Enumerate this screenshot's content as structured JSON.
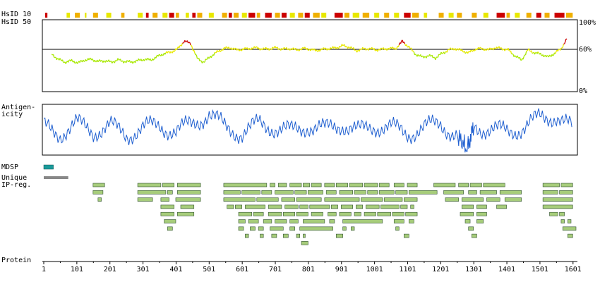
{
  "labels": {
    "hsid10": "HsID 10",
    "hsid50": "HsID 50",
    "pct100": "100%",
    "pct60": "60%",
    "pct0": "0%",
    "antigenicity": "Antigen-\nicity",
    "mdsp": "MDSP",
    "unique": "Unique\nIP-reg.",
    "protein": "Protein"
  },
  "colors": {
    "identity_high": "#cc0000",
    "identity_mid": "#e8e800",
    "identity_low": "#a8e800",
    "antigenicity_line": "#1f5fd0",
    "mdsp_bar": "#1a9a9a",
    "unique_bar": "#888888",
    "peptide_fill": "#a6cc7a",
    "peptide_stroke": "#2f4f2f"
  },
  "chart_data": {
    "type": "diagram",
    "x_axis": {
      "label": "Protein",
      "min": 1,
      "max": 1610,
      "ticks": [
        1,
        101,
        201,
        301,
        401,
        501,
        601,
        701,
        801,
        901,
        1001,
        1101,
        1201,
        1301,
        1401,
        1501,
        1601
      ]
    },
    "identity_y_ticks": [
      "100%",
      "60%",
      "0%"
    ],
    "identity_threshold_pct": 60,
    "identity_profile": {
      "x": [
        25,
        45,
        65,
        85,
        105,
        125,
        145,
        165,
        185,
        205,
        225,
        245,
        265,
        285,
        305,
        325,
        345,
        365,
        385,
        405,
        425,
        445,
        465,
        485,
        505,
        525,
        545,
        565,
        585,
        605,
        625,
        645,
        665,
        685,
        705,
        725,
        745,
        765,
        785,
        805,
        825,
        845,
        865,
        885,
        905,
        925,
        945,
        965,
        985,
        1005,
        1025,
        1045,
        1065,
        1085,
        1105,
        1125,
        1145,
        1165,
        1185,
        1205,
        1225,
        1245,
        1265,
        1285,
        1305,
        1325,
        1345,
        1365,
        1385,
        1405,
        1425,
        1445,
        1465,
        1485,
        1505,
        1525,
        1545,
        1565,
        1585
      ],
      "y": [
        52,
        45,
        41,
        43,
        40,
        44,
        45,
        42,
        43,
        41,
        44,
        42,
        41,
        43,
        45,
        44,
        49,
        53,
        55,
        59,
        70,
        67,
        46,
        41,
        49,
        55,
        60,
        61,
        58,
        59,
        60,
        61,
        59,
        60,
        61,
        59,
        60,
        58,
        60,
        59,
        57,
        59,
        60,
        61,
        64,
        62,
        57,
        59,
        60,
        58,
        59,
        60,
        60,
        70,
        62,
        52,
        48,
        50,
        47,
        53,
        58,
        60,
        57,
        54,
        59,
        60,
        58,
        61,
        60,
        58,
        50,
        44,
        58,
        54,
        52,
        48,
        53,
        60,
        75
      ]
    },
    "antigenicity_profile": {
      "x": [
        1,
        51,
        101,
        151,
        201,
        251,
        301,
        351,
        401,
        451,
        501,
        551,
        601,
        651,
        701,
        751,
        801,
        851,
        901,
        951,
        1001,
        1051,
        1101,
        1151,
        1201,
        1251,
        1281,
        1301,
        1351,
        1401,
        1451,
        1501,
        1551,
        1601
      ],
      "y": [
        0.1,
        -0.2,
        0.3,
        -0.1,
        0.2,
        -0.3,
        0.1,
        0.2,
        -0.1,
        0.3,
        0.8,
        0.1,
        -0.2,
        0.3,
        0.1,
        -0.1,
        0.2,
        0.0,
        0.3,
        -0.1,
        0.2,
        0.1,
        -0.2,
        0.1,
        0.3,
        -0.3,
        -1.0,
        0.2,
        0.0,
        -0.1,
        0.1,
        0.6,
        0.7,
        0.0
      ]
    },
    "mdsp": [
      [
        1,
        30
      ]
    ],
    "unique_ip_regions": [
      [
        1,
        75
      ]
    ],
    "peptide_rows": [
      [
        [
          150,
          185
        ],
        [
          285,
          355
        ],
        [
          360,
          395
        ],
        [
          405,
          475
        ],
        [
          545,
          675
        ],
        [
          685,
          700
        ],
        [
          710,
          735
        ],
        [
          745,
          780
        ],
        [
          785,
          805
        ],
        [
          810,
          840
        ],
        [
          850,
          880
        ],
        [
          885,
          920
        ],
        [
          925,
          965
        ],
        [
          970,
          1010
        ],
        [
          1015,
          1045
        ],
        [
          1060,
          1090
        ],
        [
          1100,
          1130
        ],
        [
          1180,
          1245
        ],
        [
          1255,
          1285
        ],
        [
          1290,
          1325
        ],
        [
          1330,
          1395
        ],
        [
          1510,
          1560
        ],
        [
          1565,
          1600
        ]
      ],
      [
        [
          150,
          180
        ],
        [
          285,
          370
        ],
        [
          375,
          390
        ],
        [
          405,
          475
        ],
        [
          545,
          595
        ],
        [
          600,
          655
        ],
        [
          660,
          690
        ],
        [
          700,
          755
        ],
        [
          760,
          795
        ],
        [
          800,
          845
        ],
        [
          855,
          885
        ],
        [
          895,
          935
        ],
        [
          940,
          975
        ],
        [
          980,
          1010
        ],
        [
          1015,
          1060
        ],
        [
          1065,
          1100
        ],
        [
          1105,
          1190
        ],
        [
          1210,
          1270
        ],
        [
          1285,
          1310
        ],
        [
          1320,
          1370
        ],
        [
          1380,
          1445
        ],
        [
          1510,
          1555
        ],
        [
          1560,
          1600
        ]
      ],
      [
        [
          165,
          175
        ],
        [
          285,
          330
        ],
        [
          355,
          380
        ],
        [
          400,
          475
        ],
        [
          545,
          640
        ],
        [
          645,
          710
        ],
        [
          720,
          760
        ],
        [
          765,
          840
        ],
        [
          850,
          955
        ],
        [
          960,
          1025
        ],
        [
          1030,
          1085
        ],
        [
          1090,
          1130
        ],
        [
          1215,
          1255
        ],
        [
          1265,
          1330
        ],
        [
          1340,
          1380
        ],
        [
          1395,
          1445
        ],
        [
          1510,
          1600
        ]
      ],
      [
        [
          355,
          395
        ],
        [
          415,
          455
        ],
        [
          555,
          575
        ],
        [
          580,
          600
        ],
        [
          610,
          670
        ],
        [
          680,
          720
        ],
        [
          730,
          770
        ],
        [
          775,
          800
        ],
        [
          805,
          865
        ],
        [
          870,
          890
        ],
        [
          900,
          935
        ],
        [
          945,
          965
        ],
        [
          975,
          1015
        ],
        [
          1020,
          1075
        ],
        [
          1080,
          1100
        ],
        [
          1110,
          1120
        ],
        [
          1265,
          1300
        ],
        [
          1310,
          1340
        ],
        [
          1370,
          1400
        ],
        [
          1510,
          1600
        ]
      ],
      [
        [
          355,
          395
        ],
        [
          405,
          455
        ],
        [
          590,
          630
        ],
        [
          635,
          665
        ],
        [
          680,
          720
        ],
        [
          725,
          760
        ],
        [
          765,
          800
        ],
        [
          810,
          845
        ],
        [
          860,
          885
        ],
        [
          895,
          930
        ],
        [
          940,
          960
        ],
        [
          970,
          1005
        ],
        [
          1010,
          1050
        ],
        [
          1055,
          1090
        ],
        [
          1095,
          1130
        ],
        [
          1260,
          1300
        ],
        [
          1310,
          1340
        ],
        [
          1530,
          1555
        ],
        [
          1560,
          1575
        ]
      ],
      [
        [
          365,
          400
        ],
        [
          590,
          610
        ],
        [
          620,
          650
        ],
        [
          665,
          690
        ],
        [
          700,
          735
        ],
        [
          745,
          770
        ],
        [
          785,
          850
        ],
        [
          865,
          880
        ],
        [
          905,
          1025
        ],
        [
          1060,
          1090
        ],
        [
          1105,
          1120
        ],
        [
          1275,
          1290
        ],
        [
          1310,
          1330
        ],
        [
          1565,
          1575
        ],
        [
          1585,
          1595
        ]
      ],
      [
        [
          375,
          390
        ],
        [
          590,
          605
        ],
        [
          625,
          640
        ],
        [
          650,
          665
        ],
        [
          685,
          725
        ],
        [
          745,
          760
        ],
        [
          775,
          875
        ],
        [
          905,
          915
        ],
        [
          930,
          940
        ],
        [
          1065,
          1075
        ],
        [
          1285,
          1300
        ],
        [
          1570,
          1610
        ]
      ],
      [
        [
          610,
          620
        ],
        [
          655,
          665
        ],
        [
          690,
          705
        ],
        [
          725,
          740
        ],
        [
          765,
          775
        ],
        [
          785,
          790
        ],
        [
          885,
          905
        ],
        [
          1090,
          1105
        ],
        [
          1295,
          1310
        ],
        [
          1585,
          1600
        ]
      ],
      [
        [
          780,
          800
        ]
      ]
    ],
    "identity_hsid10_strip": [
      [
        "#cc0000",
        5,
        12
      ],
      [
        "#e8e800",
        70,
        80
      ],
      [
        "#f0b000",
        95,
        110
      ],
      [
        "#e8e800",
        125,
        130
      ],
      [
        "#f0b000",
        150,
        165
      ],
      [
        "#e8e800",
        190,
        205
      ],
      [
        "#f0b000",
        235,
        245
      ],
      [
        "#e8e800",
        285,
        300
      ],
      [
        "#cc0000",
        310,
        318
      ],
      [
        "#f0b000",
        330,
        345
      ],
      [
        "#e8e800",
        360,
        375
      ],
      [
        "#cc0000",
        380,
        395
      ],
      [
        "#f0b000",
        400,
        410
      ],
      [
        "#e8e800",
        430,
        440
      ],
      [
        "#cc0000",
        450,
        460
      ],
      [
        "#f0b000",
        465,
        480
      ],
      [
        "#e8e800",
        500,
        515
      ],
      [
        "#f0b000",
        540,
        555
      ],
      [
        "#cc0000",
        560,
        570
      ],
      [
        "#f0b000",
        575,
        590
      ],
      [
        "#e8e800",
        600,
        615
      ],
      [
        "#cc0000",
        620,
        640
      ],
      [
        "#f0b000",
        645,
        655
      ],
      [
        "#cc0000",
        670,
        690
      ],
      [
        "#f0b000",
        700,
        715
      ],
      [
        "#cc0000",
        720,
        735
      ],
      [
        "#e8e800",
        745,
        760
      ],
      [
        "#f0b000",
        770,
        785
      ],
      [
        "#cc0000",
        790,
        805
      ],
      [
        "#f0b000",
        815,
        835
      ],
      [
        "#e8e800",
        840,
        855
      ],
      [
        "#cc0000",
        880,
        905
      ],
      [
        "#f0b000",
        910,
        925
      ],
      [
        "#e8e800",
        935,
        955
      ],
      [
        "#f0b000",
        965,
        985
      ],
      [
        "#e8e800",
        1000,
        1015
      ],
      [
        "#f0b000",
        1030,
        1045
      ],
      [
        "#e8e800",
        1060,
        1075
      ],
      [
        "#cc0000",
        1090,
        1110
      ],
      [
        "#f0b000",
        1115,
        1135
      ],
      [
        "#e8e800",
        1150,
        1160
      ],
      [
        "#f0b000",
        1195,
        1210
      ],
      [
        "#e8e800",
        1225,
        1240
      ],
      [
        "#f0b000",
        1250,
        1265
      ],
      [
        "#f0b000",
        1295,
        1310
      ],
      [
        "#e8e800",
        1330,
        1345
      ],
      [
        "#cc0000",
        1370,
        1395
      ],
      [
        "#f0b000",
        1400,
        1410
      ],
      [
        "#e8e800",
        1425,
        1440
      ],
      [
        "#f0b000",
        1460,
        1475
      ],
      [
        "#cc0000",
        1490,
        1505
      ],
      [
        "#f0b000",
        1515,
        1530
      ],
      [
        "#cc0000",
        1545,
        1575
      ],
      [
        "#f0b000",
        1580,
        1600
      ]
    ]
  }
}
